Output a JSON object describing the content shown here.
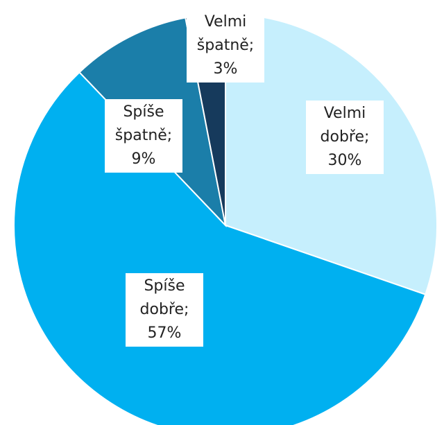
{
  "chart_data": {
    "type": "pie",
    "categories": [
      "Velmi dobře",
      "Spíše dobře",
      "Spíše špatně",
      "Velmi špatně"
    ],
    "values": [
      30,
      57,
      9,
      3
    ],
    "value_labels": [
      "30%",
      "57%",
      "9%",
      "3%"
    ],
    "separator": ";",
    "colors": [
      "#c6effd",
      "#00b0f0",
      "#1b7ea9",
      "#163a5c"
    ]
  }
}
